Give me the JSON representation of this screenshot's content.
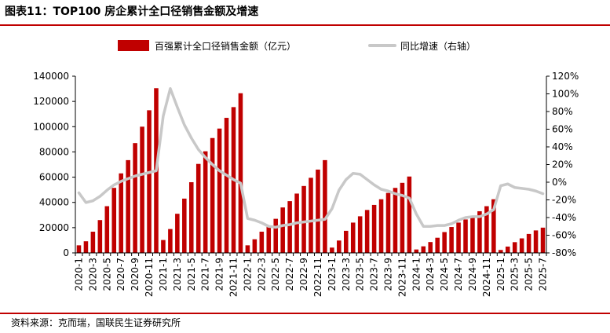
{
  "header": {
    "title": "图表11：TOP100 房企累计全口径销售金额及增速"
  },
  "footer": {
    "source": "资料来源：克而瑞，国联民生证券研究所"
  },
  "colors": {
    "accent": "#c00000",
    "bar": "#c00000",
    "line": "#c8c8c8"
  },
  "chart_data": {
    "type": "bar",
    "title": "",
    "xlabel": "",
    "ylabel": "",
    "ylim": [
      0,
      140000
    ],
    "y2lim": [
      -80,
      120
    ],
    "yticks": [
      "0",
      "20000",
      "40000",
      "60000",
      "80000",
      "100000",
      "120000",
      "140000"
    ],
    "y2ticks": [
      "-80%",
      "-60%",
      "-40%",
      "-20%",
      "0%",
      "20%",
      "40%",
      "60%",
      "80%",
      "100%",
      "120%"
    ],
    "legend_position": "top",
    "grid": false,
    "categories": [
      "2020-1",
      "2020-2",
      "2020-3",
      "2020-4",
      "2020-5",
      "2020-6",
      "2020-7",
      "2020-8",
      "2020-9",
      "2020-10",
      "2020-11",
      "2020-12",
      "2021-1",
      "2021-2",
      "2021-3",
      "2021-4",
      "2021-5",
      "2021-6",
      "2021-7",
      "2021-8",
      "2021-9",
      "2021-10",
      "2021-11",
      "2021-12",
      "2022-1",
      "2022-2",
      "2022-3",
      "2022-4",
      "2022-5",
      "2022-6",
      "2022-7",
      "2022-8",
      "2022-9",
      "2022-10",
      "2022-11",
      "2022-12",
      "2023-1",
      "2023-2",
      "2023-3",
      "2023-4",
      "2023-5",
      "2023-6",
      "2023-7",
      "2023-8",
      "2023-9",
      "2023-10",
      "2023-11",
      "2023-12",
      "2024-1",
      "2024-2",
      "2024-3",
      "2024-4",
      "2024-5",
      "2024-6",
      "2024-7",
      "2024-8",
      "2024-9",
      "2024-10",
      "2024-11",
      "2024-12",
      "2025-1",
      "2025-2",
      "2025-3",
      "2025-4",
      "2025-5",
      "2025-6",
      "2025-7"
    ],
    "xtick_labels": [
      "2020-1",
      "2020-3",
      "2020-5",
      "2020-7",
      "2020-9",
      "2020-11",
      "2021-1",
      "2021-3",
      "2021-5",
      "2021-7",
      "2021-9",
      "2021-11",
      "2022-1",
      "2022-3",
      "2022-5",
      "2022-7",
      "2022-9",
      "2022-11",
      "2023-1",
      "2023-3",
      "2023-5",
      "2023-7",
      "2023-9",
      "2023-11",
      "2024-1",
      "2024-3",
      "2024-5",
      "2024-7",
      "2024-9",
      "2024-11",
      "2025-1",
      "2025-3",
      "2025-5",
      "2025-7"
    ],
    "series": [
      {
        "name": "百强累计全口径销售金额（亿元）",
        "axis": "left",
        "values": [
          6000,
          9200,
          16800,
          26000,
          37000,
          51500,
          63000,
          73500,
          87000,
          100000,
          113000,
          130500,
          10200,
          18900,
          31000,
          43000,
          56000,
          70500,
          80500,
          91000,
          98500,
          107000,
          115500,
          126500,
          6000,
          10800,
          16800,
          21500,
          27000,
          36000,
          41000,
          47000,
          53000,
          59500,
          66000,
          73500,
          4200,
          9800,
          17500,
          24000,
          29000,
          34000,
          38000,
          42500,
          47500,
          51500,
          55500,
          60500,
          2700,
          5200,
          8600,
          12000,
          16500,
          20500,
          24000,
          26500,
          29500,
          33000,
          37000,
          42500,
          2300,
          5000,
          8500,
          11500,
          15000,
          17800,
          20000
        ]
      },
      {
        "name": "同比增速（右轴）",
        "axis": "right",
        "values": [
          -12,
          -23,
          -21,
          -16,
          -9,
          -3,
          1,
          4,
          7,
          9,
          11,
          13,
          75,
          106,
          85,
          65,
          50,
          37,
          28,
          20,
          13,
          8,
          3,
          -1,
          -41,
          -43,
          -46,
          -50,
          -51,
          -49,
          -48,
          -46,
          -45,
          -44,
          -43,
          -42,
          -30,
          -9,
          3,
          10,
          9,
          3,
          -3,
          -8,
          -10,
          -13,
          -15,
          -18,
          -36,
          -50,
          -50,
          -49,
          -49,
          -47,
          -43,
          -40,
          -39,
          -39,
          -36,
          -31,
          -4,
          -2,
          -6,
          -7,
          -8,
          -10,
          -13
        ]
      }
    ]
  }
}
